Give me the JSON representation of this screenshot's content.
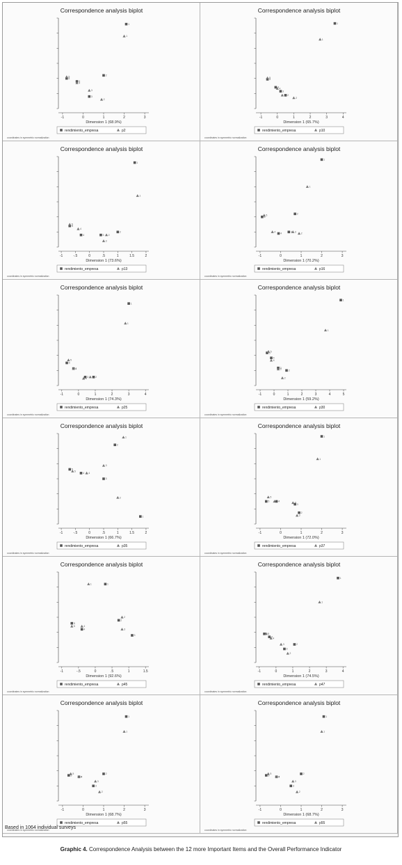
{
  "footer_note": "Based in 1064 individual surveys",
  "caption": {
    "label": "Graphic 4.",
    "text": "Correspondence Analysis between the 12 more Important Items and the Overall Performance Indicator"
  },
  "colors": {
    "rows": "#555555",
    "cols": "#777777"
  },
  "chart_data": [
    {
      "type": "scatter",
      "title": "Correspondence analysis biplot",
      "xlabel": "Dimension 1 (68.9%)",
      "note": "coordinates in symmetric normalization",
      "xticks": [
        "-1",
        "0",
        "1",
        "2",
        "3"
      ],
      "xlim": [
        -1.2,
        3.2
      ],
      "ylim": [
        -0.8,
        2.2
      ],
      "series": [
        {
          "name": "rendimiento_empresa",
          "marker": "square",
          "points": [
            [
              2.1,
              2.0,
              "1"
            ],
            [
              1.0,
              0.3,
              "2"
            ],
            [
              0.3,
              -0.4,
              "3"
            ],
            [
              -0.3,
              0.1,
              "4"
            ],
            [
              -0.8,
              0.2,
              "5"
            ]
          ]
        },
        {
          "name": "p2",
          "marker": "triangle",
          "points": [
            [
              2.0,
              1.6,
              "1"
            ],
            [
              0.9,
              -0.5,
              "2"
            ],
            [
              0.3,
              -0.2,
              "3"
            ],
            [
              -0.3,
              0.05,
              "4"
            ],
            [
              -0.8,
              0.25,
              "5"
            ]
          ]
        }
      ]
    },
    {
      "type": "scatter",
      "title": "Correspondence analysis biplot",
      "xlabel": "Dimension 1 (65.7%)",
      "note": "coordinates in symmetric normalization",
      "xticks": [
        "-1",
        "0",
        "1",
        "2",
        "3",
        "4"
      ],
      "xlim": [
        -1.3,
        4.2
      ],
      "ylim": [
        -0.8,
        2.6
      ],
      "series": [
        {
          "name": "rendimiento_empresa",
          "marker": "square",
          "points": [
            [
              3.5,
              2.4,
              "1"
            ],
            [
              0.5,
              -0.3,
              "2"
            ],
            [
              0.2,
              -0.15,
              "3"
            ],
            [
              -0.1,
              0.0,
              "4"
            ],
            [
              -0.6,
              0.3,
              "5"
            ]
          ]
        },
        {
          "name": "p10",
          "marker": "triangle",
          "points": [
            [
              2.6,
              1.8,
              "1"
            ],
            [
              1.0,
              -0.4,
              "2"
            ],
            [
              0.3,
              -0.3,
              "3"
            ],
            [
              0.0,
              -0.05,
              "4"
            ],
            [
              -0.6,
              0.35,
              "5"
            ]
          ]
        }
      ]
    },
    {
      "type": "scatter",
      "title": "Correspondence analysis biplot",
      "xlabel": "Dimension 1 (73.6%)",
      "note": "coordinates in symmetric normalization",
      "xticks": [
        "-1",
        "-.5",
        "0",
        ".5",
        "1",
        "1.5",
        "2"
      ],
      "xlim": [
        -1.1,
        2.1
      ],
      "ylim": [
        -0.9,
        2.1
      ],
      "series": [
        {
          "name": "rendimiento_empresa",
          "marker": "square",
          "points": [
            [
              1.6,
              1.9,
              "1"
            ],
            [
              1.0,
              -0.4,
              "2"
            ],
            [
              0.4,
              -0.5,
              "3"
            ],
            [
              -0.3,
              -0.5,
              "4"
            ],
            [
              -0.7,
              -0.2,
              "5"
            ]
          ]
        },
        {
          "name": "p13",
          "marker": "triangle",
          "points": [
            [
              1.7,
              0.8,
              "1"
            ],
            [
              0.6,
              -0.5,
              "2"
            ],
            [
              0.5,
              -0.7,
              "3"
            ],
            [
              -0.4,
              -0.3,
              "4"
            ],
            [
              -0.7,
              -0.15,
              "5"
            ]
          ]
        }
      ]
    },
    {
      "type": "scatter",
      "title": "Correspondence analysis biplot",
      "xlabel": "Dimension 1 (70.2%)",
      "note": "coordinates in symmetric normalization",
      "xticks": [
        "-1",
        "0",
        "1",
        "2",
        "3"
      ],
      "xlim": [
        -1.2,
        3.2
      ],
      "ylim": [
        -0.8,
        2.2
      ],
      "series": [
        {
          "name": "rendimiento_empresa",
          "marker": "square",
          "points": [
            [
              2.0,
              2.1,
              "1"
            ],
            [
              0.7,
              0.3,
              "2"
            ],
            [
              0.4,
              -0.3,
              "3"
            ],
            [
              -0.1,
              -0.35,
              "4"
            ],
            [
              -0.9,
              0.2,
              "5"
            ]
          ]
        },
        {
          "name": "p16",
          "marker": "triangle",
          "points": [
            [
              1.3,
              1.2,
              "1"
            ],
            [
              0.9,
              -0.35,
              "2"
            ],
            [
              0.6,
              -0.3,
              "3"
            ],
            [
              -0.4,
              -0.3,
              "4"
            ],
            [
              -0.8,
              0.25,
              "5"
            ]
          ]
        }
      ]
    },
    {
      "type": "scatter",
      "title": "Correspondence analysis biplot",
      "xlabel": "Dimension 1 (74.3%)",
      "note": "coordinates in symmetric normalization",
      "xticks": [
        "-1",
        "0",
        "1",
        "2",
        "3",
        "4"
      ],
      "xlim": [
        -1.2,
        4.2
      ],
      "ylim": [
        -0.8,
        2.4
      ],
      "series": [
        {
          "name": "rendimiento_empresa",
          "marker": "square",
          "points": [
            [
              3.0,
              2.1,
              "1"
            ],
            [
              0.9,
              -0.5,
              "2"
            ],
            [
              0.4,
              -0.5,
              "3"
            ],
            [
              -0.3,
              -0.2,
              "4"
            ],
            [
              -0.7,
              0.0,
              "5"
            ]
          ]
        },
        {
          "name": "p25",
          "marker": "triangle",
          "points": [
            [
              2.8,
              1.4,
              "1"
            ],
            [
              0.7,
              -0.5,
              "2"
            ],
            [
              0.3,
              -0.55,
              "3"
            ],
            [
              -0.3,
              -0.2,
              "4"
            ],
            [
              -0.6,
              0.1,
              "5"
            ]
          ]
        }
      ]
    },
    {
      "type": "scatter",
      "title": "Correspondence analysis biplot",
      "xlabel": "Dimension 1 (59.2%)",
      "note": "coordinates in symmetric normalization",
      "xticks": [
        "-1",
        "0",
        "1",
        "2",
        "3",
        "4",
        "5"
      ],
      "xlim": [
        -1.3,
        5.2
      ],
      "ylim": [
        -0.9,
        2.7
      ],
      "series": [
        {
          "name": "rendimiento_empresa",
          "marker": "square",
          "points": [
            [
              4.8,
              2.5,
              "1"
            ],
            [
              0.9,
              -0.3,
              "2"
            ],
            [
              0.3,
              -0.2,
              "3"
            ],
            [
              -0.2,
              0.2,
              "4"
            ],
            [
              -0.5,
              0.4,
              "5"
            ]
          ]
        },
        {
          "name": "p30",
          "marker": "triangle",
          "points": [
            [
              3.7,
              1.3,
              "1"
            ],
            [
              0.6,
              -0.6,
              "2"
            ],
            [
              0.3,
              -0.25,
              "3"
            ],
            [
              -0.2,
              0.1,
              "4"
            ],
            [
              -0.4,
              0.45,
              "5"
            ]
          ]
        }
      ]
    },
    {
      "type": "scatter",
      "title": "Correspondence analysis biplot",
      "xlabel": "Dimension 1 (66.7%)",
      "note": "coordinates in symmetric normalization",
      "xticks": [
        "-1",
        "-.5",
        "0",
        ".5",
        "1",
        "1.5",
        "2"
      ],
      "xlim": [
        -1.1,
        2.1
      ],
      "ylim": [
        -1.1,
        1.3
      ],
      "series": [
        {
          "name": "rendimiento_empresa",
          "marker": "square",
          "points": [
            [
              1.8,
              -0.9,
              "1"
            ],
            [
              0.9,
              1.0,
              "2"
            ],
            [
              0.5,
              0.1,
              "3"
            ],
            [
              -0.3,
              0.25,
              "4"
            ],
            [
              -0.7,
              0.35,
              "5"
            ]
          ]
        },
        {
          "name": "p35",
          "marker": "triangle",
          "points": [
            [
              1.2,
              1.2,
              "1"
            ],
            [
              1.0,
              -0.4,
              "2"
            ],
            [
              0.5,
              0.45,
              "3"
            ],
            [
              -0.1,
              0.25,
              "4"
            ],
            [
              -0.6,
              0.3,
              "5"
            ]
          ]
        }
      ]
    },
    {
      "type": "scatter",
      "title": "Correspondence analysis biplot",
      "xlabel": "Dimension 1 (72.0%)",
      "note": "coordinates in symmetric normalization",
      "xticks": [
        "-1",
        "0",
        "1",
        "2",
        "3"
      ],
      "xlim": [
        -1.2,
        3.2
      ],
      "ylim": [
        -0.8,
        2.4
      ],
      "series": [
        {
          "name": "rendimiento_empresa",
          "marker": "square",
          "points": [
            [
              2.0,
              2.3,
              "1"
            ],
            [
              0.9,
              -0.4,
              "2"
            ],
            [
              0.7,
              -0.1,
              "3"
            ],
            [
              -0.2,
              0.0,
              "4"
            ],
            [
              -0.7,
              0.0,
              "5"
            ]
          ]
        },
        {
          "name": "p37",
          "marker": "triangle",
          "points": [
            [
              1.8,
              1.5,
              "1"
            ],
            [
              0.8,
              -0.5,
              "2"
            ],
            [
              0.6,
              -0.05,
              "3"
            ],
            [
              -0.3,
              0.0,
              "4"
            ],
            [
              -0.6,
              0.15,
              "5"
            ]
          ]
        }
      ]
    },
    {
      "type": "scatter",
      "title": "Correspondence analysis biplot",
      "xlabel": "Dimension 1 (92.6%)",
      "note": "coordinates in symmetric normalization",
      "xticks": [
        "-1",
        "-.5",
        "0",
        ".5",
        "1",
        "1.5"
      ],
      "xlim": [
        -1.1,
        1.6
      ],
      "ylim": [
        -0.6,
        0.9
      ],
      "series": [
        {
          "name": "rendimiento_empresa",
          "marker": "square",
          "points": [
            [
              0.3,
              0.7,
              "1"
            ],
            [
              0.7,
              0.1,
              "2"
            ],
            [
              1.1,
              -0.15,
              "3"
            ],
            [
              -0.4,
              -0.05,
              "4"
            ],
            [
              -0.7,
              0.05,
              "5"
            ]
          ]
        },
        {
          "name": "p45",
          "marker": "triangle",
          "points": [
            [
              -0.2,
              0.7,
              "1"
            ],
            [
              0.8,
              0.15,
              "2"
            ],
            [
              0.8,
              -0.05,
              "3"
            ],
            [
              -0.4,
              0.0,
              "4"
            ],
            [
              -0.7,
              0.0,
              "5"
            ]
          ]
        }
      ]
    },
    {
      "type": "scatter",
      "title": "Correspondence analysis biplot",
      "xlabel": "Dimension 1 (74.5%)",
      "note": "coordinates in symmetric normalization",
      "xticks": [
        "-1",
        "0",
        "1",
        "2",
        "3",
        "4"
      ],
      "xlim": [
        -1.2,
        4.2
      ],
      "ylim": [
        -0.8,
        2.2
      ],
      "series": [
        {
          "name": "rendimiento_empresa",
          "marker": "square",
          "points": [
            [
              3.7,
              2.0,
              "1"
            ],
            [
              1.1,
              -0.2,
              "2"
            ],
            [
              0.5,
              -0.35,
              "3"
            ],
            [
              -0.4,
              0.05,
              "4"
            ],
            [
              -0.7,
              0.15,
              "5"
            ]
          ]
        },
        {
          "name": "p47",
          "marker": "triangle",
          "points": [
            [
              2.6,
              1.2,
              "1"
            ],
            [
              0.7,
              -0.5,
              "2"
            ],
            [
              0.3,
              -0.2,
              "3"
            ],
            [
              -0.3,
              0.0,
              "4"
            ],
            [
              -0.6,
              0.15,
              "5"
            ]
          ]
        }
      ]
    },
    {
      "type": "scatter",
      "title": "Correspondence analysis biplot",
      "xlabel": "Dimension 1 (68.7%)",
      "note": "coordinates in symmetric normalization",
      "xticks": [
        "-1",
        "0",
        "1",
        "2",
        "3"
      ],
      "xlim": [
        -1.2,
        3.2
      ],
      "ylim": [
        -0.8,
        2.2
      ],
      "series": [
        {
          "name": "rendimiento_empresa",
          "marker": "square",
          "points": [
            [
              2.1,
              2.0,
              "1"
            ],
            [
              1.0,
              0.1,
              "2"
            ],
            [
              0.5,
              -0.3,
              "3"
            ],
            [
              -0.2,
              0.0,
              "4"
            ],
            [
              -0.7,
              0.05,
              "5"
            ]
          ]
        },
        {
          "name": "p55",
          "marker": "triangle",
          "points": [
            [
              2.0,
              1.5,
              "1"
            ],
            [
              0.8,
              -0.5,
              "2"
            ],
            [
              0.6,
              -0.15,
              "3"
            ],
            [
              -0.2,
              0.0,
              "4"
            ],
            [
              -0.6,
              0.1,
              "5"
            ]
          ]
        }
      ]
    },
    {
      "type": "scatter",
      "title": "Correspondence analysis biplot",
      "xlabel": "Dimension 1 (68.7%)",
      "note": "coordinates in symmetric normalization",
      "xticks": [
        "-1",
        "0",
        "1",
        "2",
        "3"
      ],
      "xlim": [
        -1.2,
        3.2
      ],
      "ylim": [
        -0.8,
        2.2
      ],
      "series": [
        {
          "name": "rendimiento_empresa",
          "marker": "square",
          "points": [
            [
              2.1,
              2.0,
              "1"
            ],
            [
              1.0,
              0.1,
              "2"
            ],
            [
              0.5,
              -0.3,
              "3"
            ],
            [
              -0.2,
              0.0,
              "4"
            ],
            [
              -0.7,
              0.05,
              "5"
            ]
          ]
        },
        {
          "name": "p55",
          "marker": "triangle",
          "points": [
            [
              2.0,
              1.5,
              "1"
            ],
            [
              0.8,
              -0.5,
              "2"
            ],
            [
              0.6,
              -0.15,
              "3"
            ],
            [
              -0.2,
              0.0,
              "4"
            ],
            [
              -0.6,
              0.1,
              "5"
            ]
          ]
        }
      ]
    }
  ]
}
